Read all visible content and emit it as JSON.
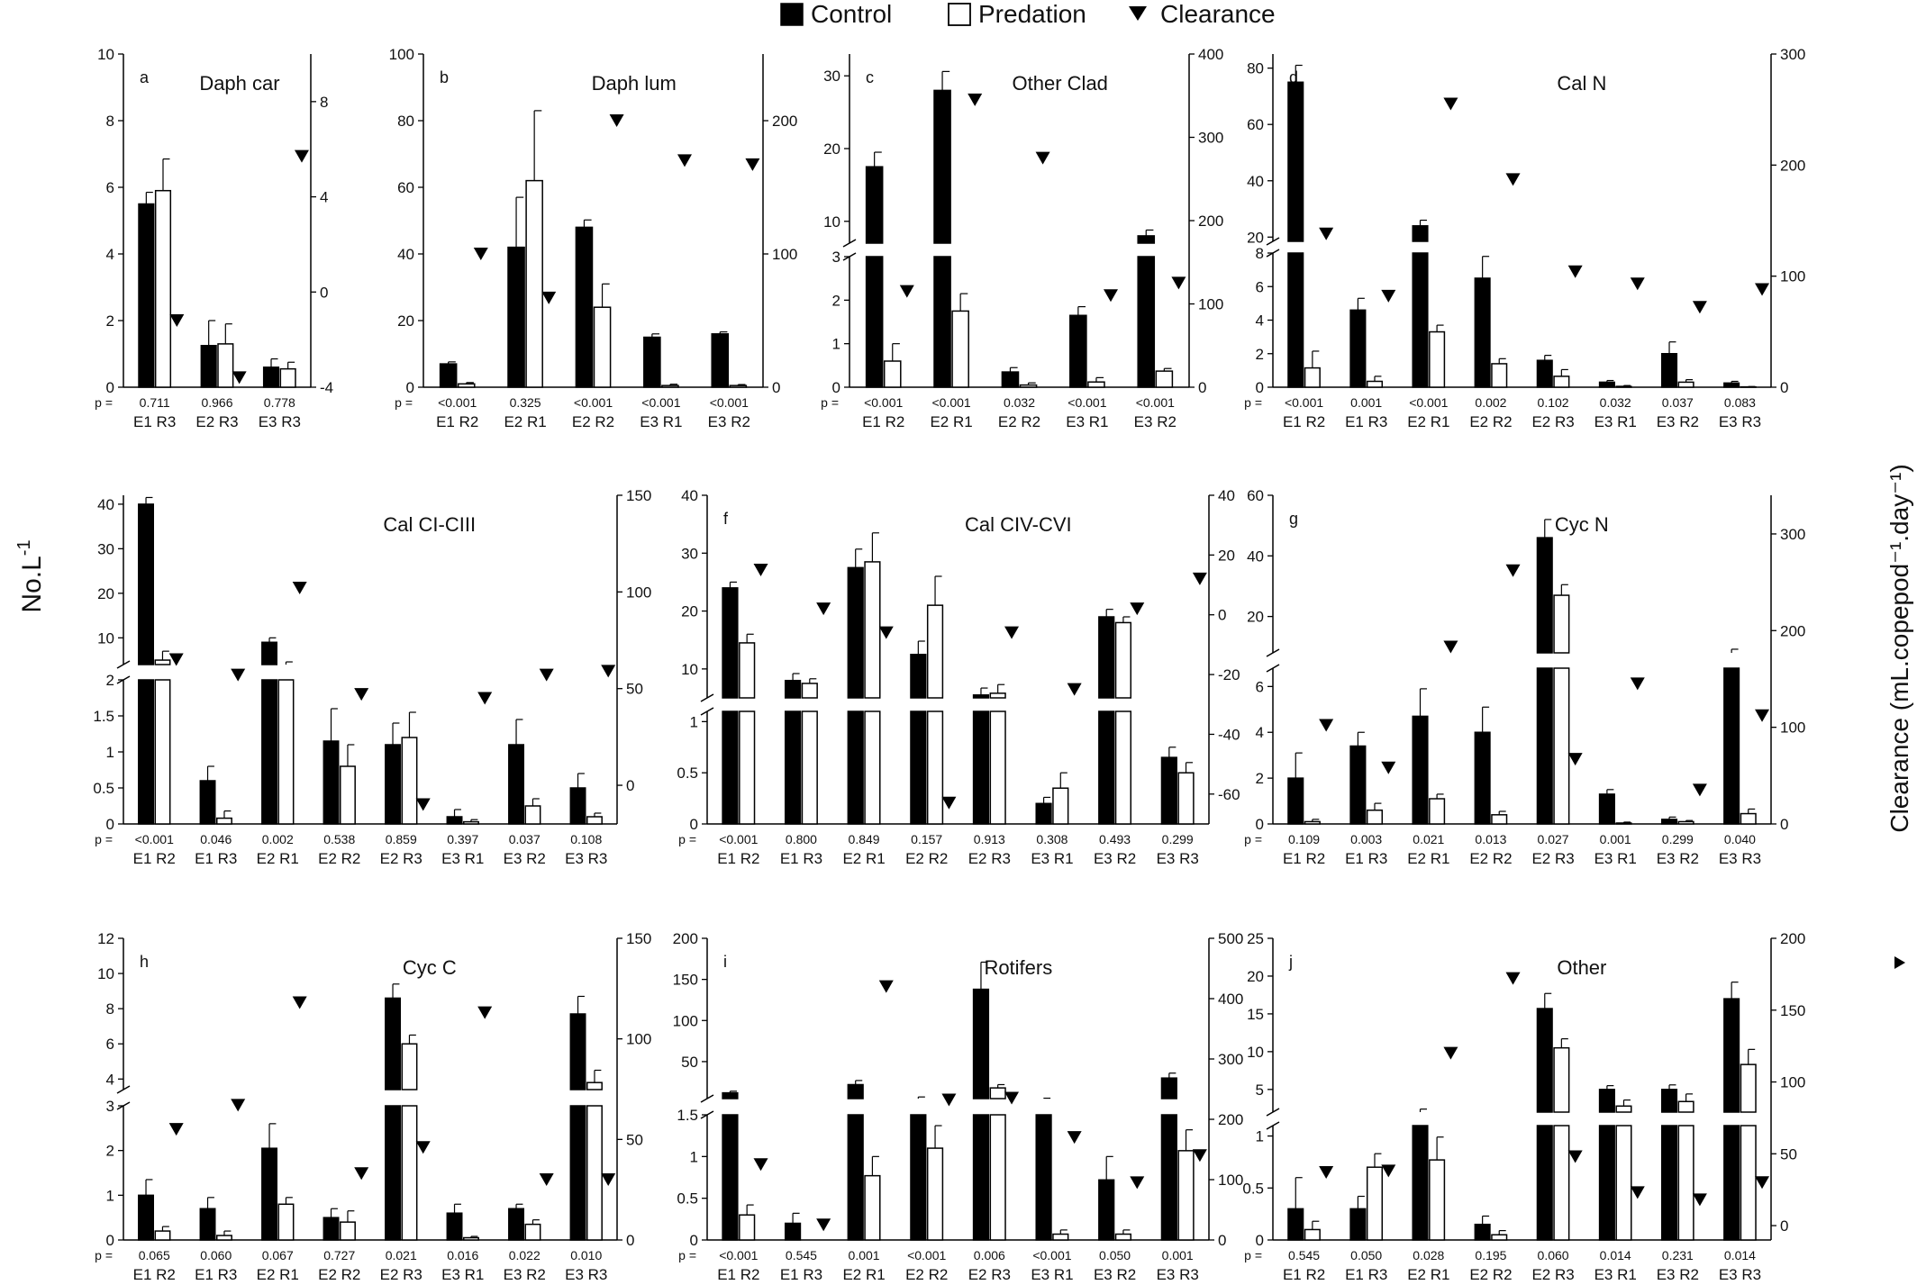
{
  "legend": {
    "control": "Control",
    "predation": "Predation",
    "clearance": "Clearance"
  },
  "y_label": "No.L",
  "y_label_sup": "-1",
  "y2_label": "Clearance (mL.copepod⁻¹.day⁻¹)",
  "p_prefix": "p =",
  "chart_data": [
    {
      "type": "bar",
      "panel": "a",
      "title": "Daph car",
      "categories": [
        "E1 R3",
        "E2 R3",
        "E3 R3"
      ],
      "series": [
        {
          "name": "Control",
          "values": [
            5.5,
            1.25,
            0.6
          ],
          "errors": [
            0.35,
            0.75,
            0.25
          ]
        },
        {
          "name": "Predation",
          "values": [
            5.9,
            1.3,
            0.55
          ],
          "errors": [
            0.95,
            0.6,
            0.2
          ]
        }
      ],
      "clearance": [
        -1.2,
        -3.6,
        5.7
      ],
      "p_values": [
        "0.711",
        "0.966",
        "0.778"
      ],
      "yticks": [
        0,
        2,
        4,
        6,
        8,
        10
      ],
      "y2ticks": [
        -4,
        0,
        4,
        8
      ],
      "y2lim": [
        -4,
        10
      ]
    },
    {
      "type": "bar",
      "panel": "b",
      "title": "Daph lum",
      "categories": [
        "E1 R2",
        "E2 R1",
        "E2 R2",
        "E3 R1",
        "E3 R2"
      ],
      "series": [
        {
          "name": "Control",
          "values": [
            7,
            42,
            48,
            15,
            16
          ],
          "errors": [
            0.6,
            15,
            2.2,
            1,
            0.6
          ]
        },
        {
          "name": "Predation",
          "values": [
            1,
            62,
            24,
            0.5,
            0.5
          ],
          "errors": [
            0.4,
            21,
            7,
            0.4,
            0.3
          ]
        }
      ],
      "clearance": [
        100,
        67,
        200,
        170,
        167
      ],
      "p_values": [
        "<0.001",
        "0.325",
        "<0.001",
        "<0.001",
        "<0.001"
      ],
      "yticks": [
        0,
        20,
        40,
        60,
        80,
        100
      ],
      "y2ticks": [
        0,
        100,
        200
      ],
      "y2lim": [
        0,
        250
      ]
    },
    {
      "type": "bar",
      "panel": "c",
      "title": "Other Clad",
      "categories": [
        "E1 R2",
        "E2 R1",
        "E2 R2",
        "E3 R1",
        "E3 R2"
      ],
      "series": [
        {
          "name": "Control",
          "values": [
            17.5,
            28,
            0.35,
            1.65,
            8
          ],
          "errors": [
            2,
            2.6,
            0.1,
            0.2,
            0.8
          ]
        },
        {
          "name": "Predation",
          "values": [
            0.6,
            1.75,
            0.05,
            0.12,
            0.37
          ],
          "errors": [
            0.4,
            0.4,
            0.05,
            0.1,
            0.06
          ]
        }
      ],
      "clearance": [
        115,
        345,
        275,
        110,
        125
      ],
      "p_values": [
        "<0.001",
        "<0.001",
        "0.032",
        "<0.001",
        "<0.001"
      ],
      "yticks_low": [
        0,
        1,
        2,
        3
      ],
      "yticks_high": [
        10,
        20,
        30
      ],
      "y2ticks": [
        0,
        100,
        200,
        300,
        400
      ],
      "y2lim": [
        0,
        400
      ]
    },
    {
      "type": "bar",
      "panel": "d",
      "title": "Cal N",
      "categories": [
        "E1 R2",
        "E1 R3",
        "E2 R1",
        "E2 R2",
        "E2 R3",
        "E3 R1",
        "E3 R2",
        "E3 R3"
      ],
      "series": [
        {
          "name": "Control",
          "values": [
            75,
            4.6,
            24,
            6.5,
            1.6,
            0.3,
            2,
            0.25
          ],
          "errors": [
            6,
            0.7,
            2,
            1.3,
            0.3,
            0.1,
            0.7,
            0.1
          ]
        },
        {
          "name": "Predation",
          "values": [
            1.15,
            0.35,
            3.3,
            1.4,
            0.65,
            0.05,
            0.3,
            0.02
          ],
          "errors": [
            1,
            0.3,
            0.4,
            0.3,
            0.4,
            0.05,
            0.15,
            0.02
          ]
        }
      ],
      "clearance": [
        138,
        82,
        255,
        187,
        104,
        93,
        72,
        88
      ],
      "p_values": [
        "<0.001",
        "0.001",
        "<0.001",
        "0.002",
        "0.102",
        "0.032",
        "0.037",
        "0.083"
      ],
      "yticks_low": [
        0,
        2,
        4,
        6,
        8
      ],
      "yticks_high": [
        20,
        40,
        60,
        80
      ],
      "y2ticks": [
        0,
        100,
        200,
        300
      ],
      "y2lim": [
        0,
        300
      ]
    },
    {
      "type": "bar",
      "panel": "e",
      "title": "Cal CI-CIII",
      "categories": [
        "E1 R2",
        "E1 R3",
        "E2 R1",
        "E2 R2",
        "E2 R3",
        "E3 R1",
        "E3 R2",
        "E3 R3"
      ],
      "series": [
        {
          "name": "Control",
          "values": [
            40,
            0.6,
            9,
            1.15,
            1.1,
            0.1,
            1.1,
            0.5
          ],
          "errors": [
            1.5,
            0.2,
            1,
            0.45,
            0.3,
            0.1,
            0.35,
            0.2
          ]
        },
        {
          "name": "Predation",
          "values": [
            5,
            0.08,
            4,
            0.8,
            1.2,
            0.03,
            0.25,
            0.1
          ],
          "errors": [
            2,
            0.1,
            0.6,
            0.3,
            0.35,
            0.03,
            0.1,
            0.05
          ]
        }
      ],
      "clearance": [
        65,
        57,
        102,
        47,
        -10,
        45,
        57,
        59
      ],
      "p_values": [
        "<0.001",
        "0.046",
        "0.002",
        "0.538",
        "0.859",
        "0.397",
        "0.037",
        "0.108"
      ],
      "yticks_low": [
        0.0,
        0.5,
        1.0,
        1.5,
        2.0
      ],
      "yticks_high": [
        10,
        20,
        30,
        40
      ],
      "y2ticks": [
        0,
        50,
        100,
        150
      ],
      "y2lim": [
        -20,
        150
      ]
    },
    {
      "type": "bar",
      "panel": "f",
      "title": "Cal CIV-CVI",
      "categories": [
        "E1 R2",
        "E1 R3",
        "E2 R1",
        "E2 R2",
        "E2 R3",
        "E3 R1",
        "E3 R2",
        "E3 R3"
      ],
      "series": [
        {
          "name": "Control",
          "values": [
            24,
            8,
            27.5,
            12.5,
            5.5,
            0.2,
            19,
            0.65
          ],
          "errors": [
            1,
            1.2,
            3.2,
            2.3,
            1.2,
            0.06,
            1.3,
            0.1
          ]
        },
        {
          "name": "Predation",
          "values": [
            14.5,
            7.5,
            28.5,
            21,
            5.8,
            0.35,
            18,
            0.5
          ],
          "errors": [
            1.5,
            0.8,
            5,
            5,
            1.5,
            0.15,
            1,
            0.1
          ]
        }
      ],
      "clearance": [
        15,
        2,
        -6,
        -63,
        -6,
        -25,
        2,
        12
      ],
      "p_values": [
        "<0.001",
        "0.800",
        "0.849",
        "0.157",
        "0.913",
        "0.308",
        "0.493",
        "0.299"
      ],
      "yticks_low": [
        0.0,
        0.5,
        1.0
      ],
      "yticks_high": [
        10,
        20,
        30,
        40
      ],
      "y2ticks": [
        -60,
        -40,
        -20,
        0,
        20,
        40
      ],
      "y2lim": [
        -70,
        40
      ]
    },
    {
      "type": "bar",
      "panel": "g",
      "title": "Cyc N",
      "categories": [
        "E1 R2",
        "E1 R3",
        "E2 R1",
        "E2 R2",
        "E2 R3",
        "E3 R1",
        "E3 R2",
        "E3 R3"
      ],
      "series": [
        {
          "name": "Control",
          "values": [
            2,
            3.4,
            4.7,
            4,
            46,
            1.3,
            0.2,
            8
          ],
          "errors": [
            1.1,
            0.6,
            1.2,
            1.1,
            6,
            0.2,
            0.1,
            1.2
          ]
        },
        {
          "name": "Predation",
          "values": [
            0.1,
            0.6,
            1.1,
            0.4,
            27,
            0.04,
            0.1,
            0.45
          ],
          "errors": [
            0.1,
            0.3,
            0.2,
            0.15,
            3.5,
            0.04,
            0.05,
            0.2
          ]
        }
      ],
      "clearance": [
        102,
        58,
        183,
        262,
        67,
        145,
        35,
        112
      ],
      "p_values": [
        "0.109",
        "0.003",
        "0.021",
        "0.013",
        "0.027",
        "0.001",
        "0.299",
        "0.040"
      ],
      "yticks_low": [
        0,
        2,
        4,
        6
      ],
      "yticks_high": [
        20,
        40,
        60
      ],
      "y2ticks": [
        0,
        100,
        200,
        300
      ],
      "y2lim": [
        0,
        340
      ]
    },
    {
      "type": "bar",
      "panel": "h",
      "title": "Cyc C",
      "categories": [
        "E1 R2",
        "E1 R3",
        "E2 R1",
        "E2 R2",
        "E2 R3",
        "E3 R1",
        "E3 R2",
        "E3 R3"
      ],
      "series": [
        {
          "name": "Control",
          "values": [
            1,
            0.7,
            2.05,
            0.5,
            8.6,
            0.6,
            0.7,
            7.7
          ],
          "errors": [
            0.35,
            0.25,
            0.55,
            0.2,
            0.8,
            0.2,
            0.1,
            1
          ]
        },
        {
          "name": "Predation",
          "values": [
            0.2,
            0.1,
            0.8,
            0.4,
            6,
            0.05,
            0.35,
            3.8
          ],
          "errors": [
            0.1,
            0.1,
            0.15,
            0.25,
            0.5,
            0.03,
            0.1,
            0.7
          ]
        }
      ],
      "clearance": [
        55,
        67,
        118,
        33,
        46,
        113,
        30,
        30
      ],
      "p_values": [
        "0.065",
        "0.060",
        "0.067",
        "0.727",
        "0.021",
        "0.016",
        "0.022",
        "0.010"
      ],
      "yticks_low": [
        0,
        1,
        2,
        3
      ],
      "yticks_high": [
        4,
        6,
        8,
        10,
        12
      ],
      "y2ticks": [
        0,
        50,
        100,
        150
      ],
      "y2lim": [
        0,
        150
      ]
    },
    {
      "type": "bar",
      "panel": "i",
      "title": "Rotifers",
      "categories": [
        "E1 R2",
        "E1 R3",
        "E2 R1",
        "E2 R2",
        "E2 R3",
        "E3 R1",
        "E3 R2",
        "E3 R3"
      ],
      "series": [
        {
          "name": "Control",
          "values": [
            12,
            0.2,
            22,
            5,
            138,
            4,
            0.72,
            30
          ],
          "errors": [
            2,
            0.12,
            5,
            2,
            33,
            1.5,
            0.28,
            6
          ]
        },
        {
          "name": "Predation",
          "values": [
            0.3,
            0,
            0.77,
            1.1,
            18,
            0.07,
            0.07,
            1.07
          ],
          "errors": [
            0.12,
            0,
            0.23,
            0.27,
            4,
            0.05,
            0.05,
            0.25
          ]
        }
      ],
      "clearance": [
        125,
        25,
        420,
        232,
        235,
        170,
        95,
        140
      ],
      "p_values": [
        "<0.001",
        "0.545",
        "0.001",
        "<0.001",
        "0.006",
        "<0.001",
        "0.050",
        "0.001"
      ],
      "yticks_low": [
        0.0,
        0.5,
        1.0,
        1.5
      ],
      "yticks_high": [
        50,
        100,
        150,
        200
      ],
      "y2ticks": [
        0,
        100,
        200,
        300,
        400,
        500
      ],
      "y2lim": [
        0,
        500
      ]
    },
    {
      "type": "bar",
      "panel": "j",
      "title": "Other",
      "categories": [
        "E1 R2",
        "E1 R3",
        "E2 R1",
        "E2 R2",
        "E2 R3",
        "E3 R1",
        "E3 R2",
        "E3 R3"
      ],
      "series": [
        {
          "name": "Control",
          "values": [
            0.3,
            0.3,
            2,
            0.15,
            15.7,
            5,
            5,
            17
          ],
          "errors": [
            0.3,
            0.12,
            0.4,
            0.08,
            2,
            0.5,
            0.6,
            2.2
          ]
        },
        {
          "name": "Predation",
          "values": [
            0.1,
            0.7,
            0.77,
            0.05,
            10.5,
            2.8,
            3.4,
            8.3
          ],
          "errors": [
            0.08,
            0.13,
            0.22,
            0.04,
            1.2,
            0.8,
            1,
            2
          ]
        }
      ],
      "clearance": [
        37,
        38,
        120,
        172,
        48,
        23,
        18,
        30
      ],
      "p_values": [
        "0.545",
        "0.050",
        "0.028",
        "0.195",
        "0.060",
        "0.014",
        "0.231",
        "0.014"
      ],
      "yticks_low": [
        0.0,
        0.5,
        1.0
      ],
      "yticks_high": [
        5,
        10,
        15,
        20,
        25
      ],
      "y2ticks": [
        0,
        50,
        100,
        150,
        200
      ],
      "y2lim": [
        -10,
        200
      ]
    }
  ]
}
